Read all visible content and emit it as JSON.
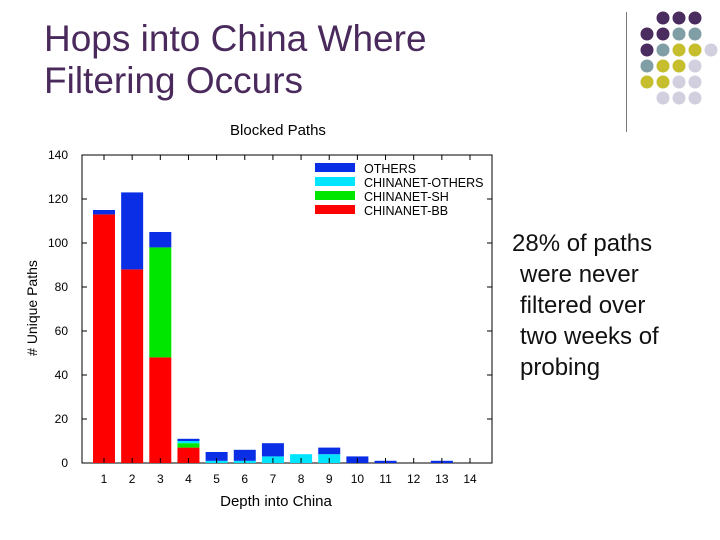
{
  "slide": {
    "title_lines": [
      "Hops into China Where",
      "Filtering Occurs"
    ],
    "note_lines": [
      "28% of paths",
      "were never",
      "filtered over",
      "two weeks of",
      "probing"
    ]
  },
  "decoration": {
    "dot_colors": [
      "#4b2c5e",
      "#7f9ea6",
      "#c7be2e",
      "#d2d0df"
    ]
  },
  "chart_data": {
    "type": "bar",
    "stacked": true,
    "title": "Blocked Paths",
    "xlabel": "Depth into China",
    "ylabel": "# Unique Paths",
    "categories": [
      "1",
      "2",
      "3",
      "4",
      "5",
      "6",
      "7",
      "8",
      "9",
      "10",
      "11",
      "12",
      "13",
      "14"
    ],
    "ylim": [
      0,
      140
    ],
    "yticks": [
      0,
      20,
      40,
      60,
      80,
      100,
      120,
      140
    ],
    "legend_position": "top-right",
    "series": [
      {
        "name": "CHINANET-BB",
        "color": "#ff0000",
        "values": [
          113,
          88,
          48,
          7,
          0,
          0,
          0,
          0,
          0,
          0,
          0,
          0,
          0,
          0
        ]
      },
      {
        "name": "CHINANET-SH",
        "color": "#00e600",
        "values": [
          0,
          0,
          50,
          2,
          0,
          0,
          0,
          0,
          0,
          0,
          0,
          0,
          0,
          0
        ]
      },
      {
        "name": "CHINANET-OTHERS",
        "color": "#00e5ff",
        "values": [
          0,
          0,
          0,
          1,
          1,
          1,
          3,
          4,
          4,
          0,
          0,
          0,
          0,
          0
        ]
      },
      {
        "name": "OTHERS",
        "color": "#0a2ee6",
        "values": [
          2,
          35,
          7,
          1,
          4,
          5,
          6,
          0,
          3,
          3,
          1,
          0,
          1,
          0
        ]
      }
    ]
  }
}
